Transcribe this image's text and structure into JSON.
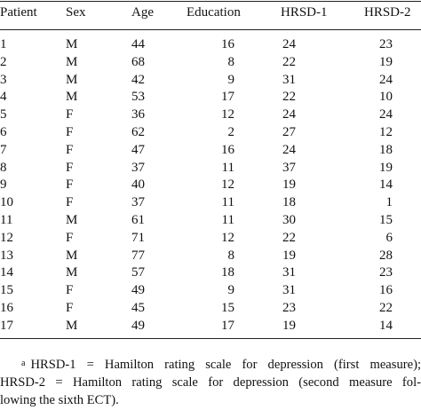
{
  "table": {
    "headers": {
      "patient": "Patient",
      "sex": "Sex",
      "age": "Age",
      "education": "Education",
      "hrsd1": "HRSD-1",
      "hrsd2": "HRSD-2"
    },
    "rows": [
      {
        "patient": "1",
        "sex": "M",
        "age": "44",
        "education": "16",
        "hrsd1": "24",
        "hrsd2": "23"
      },
      {
        "patient": "2",
        "sex": "M",
        "age": "68",
        "education": "8",
        "hrsd1": "22",
        "hrsd2": "19"
      },
      {
        "patient": "3",
        "sex": "M",
        "age": "42",
        "education": "9",
        "hrsd1": "31",
        "hrsd2": "24"
      },
      {
        "patient": "4",
        "sex": "M",
        "age": "53",
        "education": "17",
        "hrsd1": "22",
        "hrsd2": "10"
      },
      {
        "patient": "5",
        "sex": "F",
        "age": "36",
        "education": "12",
        "hrsd1": "24",
        "hrsd2": "24"
      },
      {
        "patient": "6",
        "sex": "F",
        "age": "62",
        "education": "2",
        "hrsd1": "27",
        "hrsd2": "12"
      },
      {
        "patient": "7",
        "sex": "F",
        "age": "47",
        "education": "16",
        "hrsd1": "24",
        "hrsd2": "18"
      },
      {
        "patient": "8",
        "sex": "F",
        "age": "37",
        "education": "11",
        "hrsd1": "37",
        "hrsd2": "19"
      },
      {
        "patient": "9",
        "sex": "F",
        "age": "40",
        "education": "12",
        "hrsd1": "19",
        "hrsd2": "14"
      },
      {
        "patient": "10",
        "sex": "F",
        "age": "37",
        "education": "11",
        "hrsd1": "18",
        "hrsd2": "1"
      },
      {
        "patient": "11",
        "sex": "M",
        "age": "61",
        "education": "11",
        "hrsd1": "30",
        "hrsd2": "15"
      },
      {
        "patient": "12",
        "sex": "F",
        "age": "71",
        "education": "12",
        "hrsd1": "22",
        "hrsd2": "6"
      },
      {
        "patient": "13",
        "sex": "M",
        "age": "77",
        "education": "8",
        "hrsd1": "19",
        "hrsd2": "28"
      },
      {
        "patient": "14",
        "sex": "M",
        "age": "57",
        "education": "18",
        "hrsd1": "31",
        "hrsd2": "23"
      },
      {
        "patient": "15",
        "sex": "F",
        "age": "49",
        "education": "9",
        "hrsd1": "31",
        "hrsd2": "16"
      },
      {
        "patient": "16",
        "sex": "F",
        "age": "45",
        "education": "15",
        "hrsd1": "23",
        "hrsd2": "22"
      },
      {
        "patient": "17",
        "sex": "M",
        "age": "49",
        "education": "17",
        "hrsd1": "19",
        "hrsd2": "14"
      }
    ]
  },
  "footnote": {
    "marker": "a",
    "line1": "HRSD-1 = Hamilton rating scale for depression (first measure);",
    "line2": "HRSD-2 = Hamilton rating scale for depression (second measure fol-",
    "line3": "lowing the sixth ECT)."
  }
}
